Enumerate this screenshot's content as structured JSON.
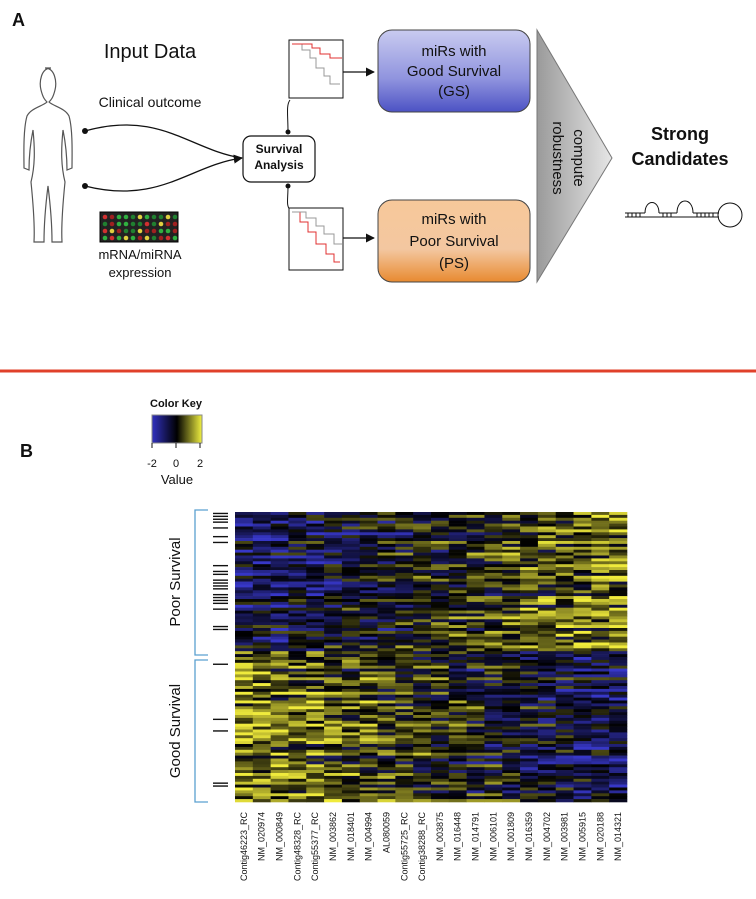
{
  "panel_a": {
    "label": "A",
    "input_title": "Input Data",
    "clinical": "Clinical outcome",
    "expression_label": [
      "mRNA/miRNA",
      "expression"
    ],
    "survival_box": [
      "Survival",
      "Analysis"
    ],
    "gs_box": [
      "miRs with",
      "Good Survival",
      "(GS)"
    ],
    "ps_box": [
      "miRs with",
      "Poor Survival",
      "(PS)"
    ],
    "compute": [
      "compute",
      "robustness"
    ],
    "result": [
      "Strong",
      "Candidates"
    ]
  },
  "panel_b": {
    "label": "B",
    "color_key": {
      "title": "Color Key",
      "ticks": [
        -2,
        0,
        2
      ],
      "axis_label": "Value"
    },
    "row_groups": [
      "Poor Survival",
      "Good Survival"
    ],
    "columns": [
      "Contig46223_RC",
      "NM_020974",
      "NM_000849",
      "Contig48328_RC",
      "Contig55377_RC",
      "NM_003862",
      "NM_018401",
      "NM_004994",
      "AL080059",
      "Contig55725_RC",
      "Contig38288_RC",
      "NM_003875",
      "NM_016448",
      "NM_014791",
      "NM_006101",
      "NM_001809",
      "NM_016359",
      "NM_004702",
      "NM_003981",
      "NM_005915",
      "NM_020188",
      "NM_014321"
    ]
  }
}
